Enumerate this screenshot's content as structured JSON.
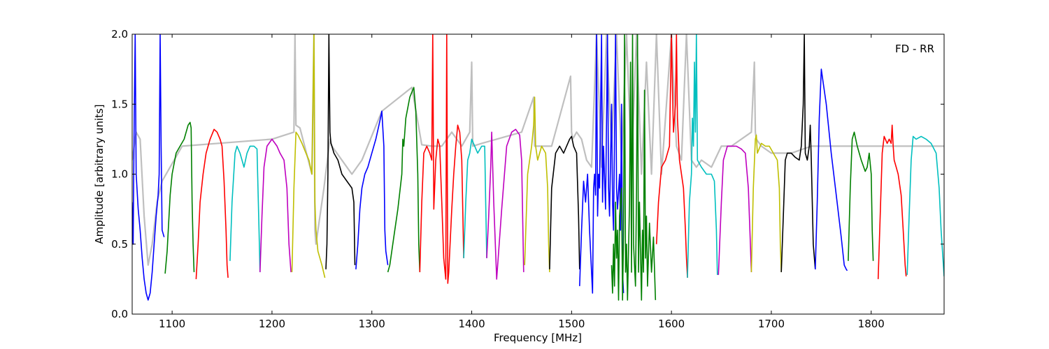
{
  "chart_data": {
    "type": "line",
    "title": "",
    "annotation": "FD - RR",
    "xlabel": "Frequency [MHz]",
    "ylabel": "Amplitude [arbitrary units]",
    "xlim": [
      1060,
      1873
    ],
    "ylim": [
      0.0,
      2.0
    ],
    "xticks": [
      1100,
      1200,
      1300,
      1400,
      1500,
      1600,
      1700,
      1800
    ],
    "yticks": [
      0.0,
      0.5,
      1.0,
      1.5,
      2.0
    ],
    "xtick_labels": [
      "1100",
      "1200",
      "1300",
      "1400",
      "1500",
      "1600",
      "1700",
      "1800"
    ],
    "ytick_labels": [
      "0.0",
      "0.5",
      "1.0",
      "1.5",
      "2.0"
    ],
    "grid": false,
    "colors": {
      "background_envelope": "#bfbfbf",
      "cycle": [
        "#0000ff",
        "#008000",
        "#ff0000",
        "#00bfbf",
        "#bf00bf",
        "#bfbf00",
        "#000000"
      ]
    },
    "background_envelope": {
      "x": [
        1060,
        1064,
        1068,
        1072,
        1076,
        1080,
        1085,
        1090,
        1110,
        1200,
        1222,
        1223,
        1224,
        1228,
        1240,
        1242,
        1243,
        1244,
        1252,
        1258,
        1260,
        1280,
        1290,
        1310,
        1340,
        1350,
        1360,
        1370,
        1380,
        1390,
        1398,
        1400,
        1401,
        1410,
        1450,
        1462,
        1463,
        1480,
        1499,
        1500,
        1501,
        1505,
        1510,
        1515,
        1520,
        1525,
        1530,
        1535,
        1540,
        1545,
        1550,
        1555,
        1560,
        1565,
        1570,
        1575,
        1580,
        1585,
        1590,
        1600,
        1605,
        1610,
        1615,
        1620,
        1625,
        1630,
        1640,
        1650,
        1660,
        1680,
        1683,
        1684,
        1685,
        1690,
        1700,
        1720,
        1740,
        1760,
        1800,
        1873
      ],
      "y": [
        1.1,
        1.3,
        1.25,
        0.7,
        0.35,
        0.5,
        0.8,
        0.95,
        1.2,
        1.25,
        1.3,
        2.0,
        1.35,
        1.33,
        1.0,
        2.0,
        0.6,
        0.5,
        0.9,
        1.25,
        1.2,
        1.0,
        1.1,
        1.45,
        1.62,
        1.21,
        1.2,
        1.2,
        1.3,
        1.2,
        1.3,
        1.8,
        1.2,
        1.22,
        1.3,
        1.55,
        1.2,
        1.2,
        1.7,
        1.3,
        1.25,
        1.3,
        1.25,
        1.1,
        1.05,
        2.0,
        1.05,
        2.0,
        1.2,
        2.0,
        1.1,
        2.0,
        1.05,
        2.0,
        1.0,
        1.8,
        1.0,
        2.0,
        1.0,
        2.0,
        1.2,
        1.1,
        2.0,
        1.1,
        1.05,
        1.1,
        1.05,
        1.2,
        1.2,
        1.3,
        1.8,
        1.3,
        1.25,
        1.2,
        1.15,
        1.15,
        1.2,
        1.2,
        1.2,
        1.2
      ]
    },
    "series": [
      {
        "color": "#0000ff",
        "x": [
          1060,
          1061,
          1062,
          1063,
          1064,
          1066,
          1068,
          1070,
          1072,
          1074,
          1076,
          1078,
          1080,
          1082,
          1084,
          1086,
          1087,
          1088,
          1089,
          1090,
          1092
        ],
        "y": [
          0.8,
          0.5,
          1.4,
          2.0,
          1.0,
          0.75,
          0.6,
          0.4,
          0.25,
          0.15,
          0.1,
          0.15,
          0.3,
          0.5,
          0.7,
          0.85,
          1.0,
          2.0,
          1.2,
          0.6,
          0.55
        ]
      },
      {
        "color": "#008000",
        "x": [
          1093,
          1095,
          1098,
          1100,
          1104,
          1108,
          1112,
          1116,
          1118,
          1119,
          1120,
          1121,
          1122
        ],
        "y": [
          0.29,
          0.45,
          0.85,
          1.0,
          1.15,
          1.2,
          1.25,
          1.35,
          1.37,
          1.33,
          0.8,
          0.5,
          0.3
        ]
      },
      {
        "color": "#ff0000",
        "x": [
          1124,
          1126,
          1128,
          1131,
          1134,
          1138,
          1142,
          1145,
          1148,
          1150,
          1152,
          1154,
          1155,
          1156
        ],
        "y": [
          0.25,
          0.5,
          0.8,
          1.0,
          1.15,
          1.25,
          1.32,
          1.3,
          1.25,
          1.2,
          0.95,
          0.6,
          0.35,
          0.26
        ]
      },
      {
        "color": "#00bfbf",
        "x": [
          1158,
          1160,
          1163,
          1165,
          1168,
          1172,
          1175,
          1178,
          1182,
          1185,
          1187,
          1188
        ],
        "y": [
          0.38,
          0.8,
          1.15,
          1.2,
          1.15,
          1.05,
          1.15,
          1.2,
          1.2,
          1.18,
          0.6,
          0.3
        ]
      },
      {
        "color": "#bf00bf",
        "x": [
          1188,
          1190,
          1192,
          1195,
          1200,
          1205,
          1208,
          1212,
          1215,
          1217,
          1219
        ],
        "y": [
          0.3,
          0.7,
          1.05,
          1.2,
          1.25,
          1.2,
          1.15,
          1.1,
          0.9,
          0.5,
          0.3
        ]
      },
      {
        "color": "#bfbf00",
        "x": [
          1220,
          1222,
          1224,
          1226,
          1230,
          1234,
          1237,
          1240,
          1241,
          1242,
          1243,
          1244,
          1246,
          1250,
          1253
        ],
        "y": [
          0.3,
          0.9,
          1.3,
          1.28,
          1.22,
          1.15,
          1.1,
          1.0,
          1.5,
          2.0,
          0.8,
          0.6,
          0.45,
          0.35,
          0.26
        ]
      },
      {
        "color": "#000000",
        "x": [
          1254,
          1255,
          1256,
          1257,
          1258,
          1259,
          1260,
          1262,
          1266,
          1270,
          1275,
          1280,
          1282,
          1283
        ],
        "y": [
          0.32,
          0.5,
          1.0,
          2.0,
          1.3,
          1.22,
          1.2,
          1.15,
          1.1,
          1.0,
          0.95,
          0.9,
          0.8,
          0.35
        ]
      },
      {
        "color": "#0000ff",
        "x": [
          1284,
          1286,
          1288,
          1290,
          1293,
          1296,
          1300,
          1304,
          1308,
          1310,
          1312,
          1313,
          1314,
          1316
        ],
        "y": [
          0.32,
          0.5,
          0.75,
          0.9,
          1.0,
          1.05,
          1.15,
          1.25,
          1.38,
          1.45,
          1.2,
          0.6,
          0.45,
          0.35
        ]
      },
      {
        "color": "#008000",
        "x": [
          1316,
          1318,
          1322,
          1326,
          1330,
          1331,
          1332,
          1334,
          1338,
          1342,
          1344,
          1346,
          1347,
          1348
        ],
        "y": [
          0.3,
          0.35,
          0.55,
          0.75,
          1.0,
          1.25,
          1.2,
          1.4,
          1.55,
          1.62,
          1.45,
          1.0,
          0.5,
          0.3
        ]
      },
      {
        "color": "#ff0000",
        "x": [
          1348,
          1350,
          1352,
          1355,
          1358,
          1360,
          1361,
          1362,
          1364,
          1366,
          1368,
          1370,
          1372,
          1374,
          1375,
          1376,
          1377,
          1378,
          1380,
          1382,
          1384,
          1386,
          1388,
          1390,
          1392
        ],
        "y": [
          0.3,
          0.8,
          1.15,
          1.2,
          1.15,
          1.1,
          2.0,
          0.75,
          1.1,
          1.25,
          1.2,
          0.8,
          0.4,
          0.25,
          2.0,
          0.22,
          0.3,
          0.45,
          0.75,
          1.0,
          1.2,
          1.35,
          1.3,
          1.1,
          0.4
        ]
      },
      {
        "color": "#00bfbf",
        "x": [
          1392,
          1394,
          1396,
          1398,
          1400,
          1403,
          1406,
          1410,
          1413,
          1414,
          1415
        ],
        "y": [
          0.4,
          0.8,
          1.1,
          1.15,
          1.25,
          1.2,
          1.15,
          1.2,
          1.2,
          0.8,
          0.4
        ]
      },
      {
        "color": "#bf00bf",
        "x": [
          1415,
          1417,
          1419,
          1420,
          1422,
          1425,
          1430,
          1435,
          1440,
          1444,
          1448,
          1450,
          1452
        ],
        "y": [
          0.4,
          0.7,
          1.05,
          1.3,
          0.8,
          0.25,
          0.75,
          1.2,
          1.3,
          1.32,
          1.28,
          1.1,
          0.3
        ]
      },
      {
        "color": "#bfbf00",
        "x": [
          1453,
          1456,
          1460,
          1462,
          1463,
          1464,
          1466,
          1470,
          1474,
          1476,
          1477,
          1478
        ],
        "y": [
          0.35,
          1.0,
          1.2,
          1.35,
          1.55,
          1.2,
          1.1,
          1.2,
          1.15,
          0.9,
          0.5,
          0.3
        ]
      },
      {
        "color": "#000000",
        "x": [
          1478,
          1480,
          1484,
          1488,
          1492,
          1495,
          1498,
          1500,
          1502,
          1505,
          1507,
          1508
        ],
        "y": [
          0.32,
          0.9,
          1.15,
          1.2,
          1.15,
          1.2,
          1.25,
          1.27,
          1.2,
          1.15,
          0.7,
          0.32
        ]
      },
      {
        "color": "#0000ff",
        "x": [
          1508,
          1510,
          1512,
          1514,
          1516,
          1518,
          1520,
          1521,
          1522,
          1523,
          1524,
          1525,
          1526,
          1527,
          1528,
          1530,
          1531,
          1532,
          1534,
          1536,
          1537,
          1538,
          1540,
          1541,
          1542,
          1544,
          1545,
          1546,
          1548,
          1549,
          1550,
          1551,
          1552
        ],
        "y": [
          0.2,
          0.6,
          0.95,
          0.8,
          1.0,
          0.6,
          0.3,
          0.15,
          0.9,
          1.0,
          0.85,
          2.0,
          0.7,
          1.0,
          0.9,
          2.0,
          0.8,
          1.2,
          0.75,
          2.0,
          0.9,
          0.7,
          1.5,
          0.8,
          0.6,
          2.0,
          0.9,
          0.75,
          1.0,
          0.6,
          1.5,
          0.3,
          0.15
        ]
      },
      {
        "color": "#008000",
        "x": [
          1540,
          1541,
          1542,
          1543,
          1544,
          1545,
          1546,
          1547,
          1548,
          1550,
          1551,
          1552,
          1553,
          1554,
          1555,
          1556,
          1558,
          1559,
          1560,
          1561,
          1562,
          1564,
          1565,
          1566,
          1567,
          1568,
          1570,
          1571,
          1572,
          1573,
          1574,
          1575,
          1576,
          1578,
          1580,
          1582,
          1584
        ],
        "y": [
          0.35,
          0.15,
          0.5,
          0.2,
          0.8,
          0.4,
          0.6,
          0.1,
          0.7,
          0.9,
          0.1,
          0.55,
          2.0,
          0.3,
          0.5,
          0.1,
          0.8,
          1.8,
          0.3,
          2.0,
          0.5,
          0.2,
          0.9,
          2.0,
          0.3,
          0.8,
          0.1,
          0.6,
          0.3,
          1.6,
          0.4,
          0.7,
          0.2,
          0.65,
          0.3,
          0.55,
          0.1
        ]
      },
      {
        "color": "#ff0000",
        "x": [
          1585,
          1587,
          1590,
          1594,
          1598,
          1600,
          1601,
          1602,
          1604,
          1605,
          1606,
          1608,
          1612,
          1614,
          1615,
          1616
        ],
        "y": [
          0.5,
          0.8,
          1.05,
          1.1,
          1.2,
          2.0,
          1.6,
          1.3,
          1.5,
          2.0,
          1.4,
          1.1,
          0.9,
          0.6,
          0.4,
          0.26
        ]
      },
      {
        "color": "#00bfbf",
        "x": [
          1616,
          1618,
          1620,
          1621,
          1622,
          1623,
          1624,
          1625,
          1626,
          1630,
          1635,
          1640,
          1643,
          1645,
          1646
        ],
        "y": [
          0.26,
          0.8,
          1.0,
          1.4,
          1.2,
          1.8,
          1.3,
          2.0,
          1.1,
          1.05,
          1.0,
          1.0,
          0.95,
          0.6,
          0.28
        ]
      },
      {
        "color": "#bf00bf",
        "x": [
          1647,
          1650,
          1652,
          1656,
          1660,
          1665,
          1670,
          1674,
          1677,
          1679,
          1680
        ],
        "y": [
          0.28,
          0.8,
          1.1,
          1.2,
          1.2,
          1.2,
          1.18,
          1.15,
          0.9,
          0.5,
          0.3
        ]
      },
      {
        "color": "#bfbf00",
        "x": [
          1680,
          1682,
          1684,
          1685,
          1686,
          1690,
          1694,
          1698,
          1702,
          1706,
          1708,
          1709,
          1710
        ],
        "y": [
          0.3,
          0.9,
          1.25,
          1.28,
          1.15,
          1.22,
          1.2,
          1.2,
          1.15,
          1.1,
          0.9,
          0.5,
          0.3
        ]
      },
      {
        "color": "#000000",
        "x": [
          1710,
          1712,
          1714,
          1716,
          1720,
          1724,
          1728,
          1730,
          1732,
          1733,
          1734,
          1736,
          1738,
          1739,
          1740,
          1742,
          1744
        ],
        "y": [
          0.3,
          0.7,
          1.1,
          1.15,
          1.15,
          1.12,
          1.1,
          1.2,
          1.5,
          2.0,
          1.15,
          1.1,
          1.2,
          1.35,
          1.1,
          0.5,
          0.32
        ]
      },
      {
        "color": "#0000ff",
        "x": [
          1744,
          1746,
          1748,
          1750,
          1752,
          1755,
          1760,
          1765,
          1770,
          1773,
          1775,
          1776
        ],
        "y": [
          0.32,
          0.8,
          1.4,
          1.75,
          1.65,
          1.5,
          1.15,
          0.85,
          0.55,
          0.35,
          0.32,
          0.31
        ]
      },
      {
        "color": "#008000",
        "x": [
          1777,
          1779,
          1781,
          1783,
          1786,
          1790,
          1794,
          1796,
          1798,
          1800,
          1801,
          1802
        ],
        "y": [
          0.38,
          0.9,
          1.25,
          1.3,
          1.2,
          1.1,
          1.02,
          1.05,
          1.15,
          1.0,
          0.6,
          0.38
        ]
      },
      {
        "color": "#ff0000",
        "x": [
          1807,
          1809,
          1811,
          1813,
          1816,
          1818,
          1820,
          1821,
          1822,
          1823,
          1825,
          1827,
          1830,
          1832,
          1834,
          1835
        ],
        "y": [
          0.25,
          0.7,
          1.15,
          1.27,
          1.22,
          1.25,
          1.22,
          1.35,
          1.2,
          1.1,
          1.05,
          1.0,
          0.85,
          0.6,
          0.35,
          0.27
        ]
      },
      {
        "color": "#00bfbf",
        "x": [
          1836,
          1838,
          1840,
          1842,
          1845,
          1850,
          1855,
          1860,
          1865,
          1868,
          1870,
          1873
        ],
        "y": [
          0.28,
          0.7,
          1.1,
          1.27,
          1.25,
          1.27,
          1.25,
          1.22,
          1.15,
          0.9,
          0.6,
          0.27
        ]
      }
    ]
  }
}
